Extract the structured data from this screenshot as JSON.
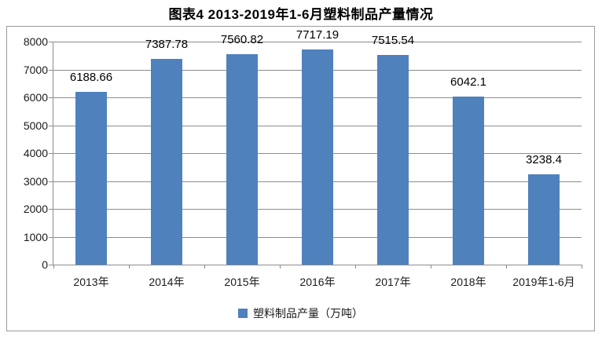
{
  "chart_data": {
    "type": "bar",
    "title": "图表4  2013-2019年1-6月塑料制品产量情况",
    "categories": [
      "2013年",
      "2014年",
      "2015年",
      "2016年",
      "2017年",
      "2018年",
      "2019年1-6月"
    ],
    "values": [
      6188.66,
      7387.78,
      7560.82,
      7717.19,
      7515.54,
      6042.1,
      3238.4
    ],
    "data_labels": [
      "6188.66",
      "7387.78",
      "7560.82",
      "7717.19",
      "7515.54",
      "6042.1",
      "3238.4"
    ],
    "series_name": "塑料制品产量（万吨）",
    "legend": {
      "label": "塑料制品产量（万吨）",
      "position": "bottom",
      "marker_color": "#4F81BD"
    },
    "xlabel": "",
    "ylabel": "",
    "ylim": [
      0,
      8000
    ],
    "ytick_step": 1000,
    "yticks": [
      "0",
      "1000",
      "2000",
      "3000",
      "4000",
      "5000",
      "6000",
      "7000",
      "8000"
    ],
    "grid": true,
    "colors": {
      "bar": "#4F81BD",
      "gridline": "#8C8C8C",
      "axis": "#8C8C8C",
      "box_border": "#9B9B9B",
      "text": "#000000",
      "background": "#FFFFFF"
    }
  }
}
